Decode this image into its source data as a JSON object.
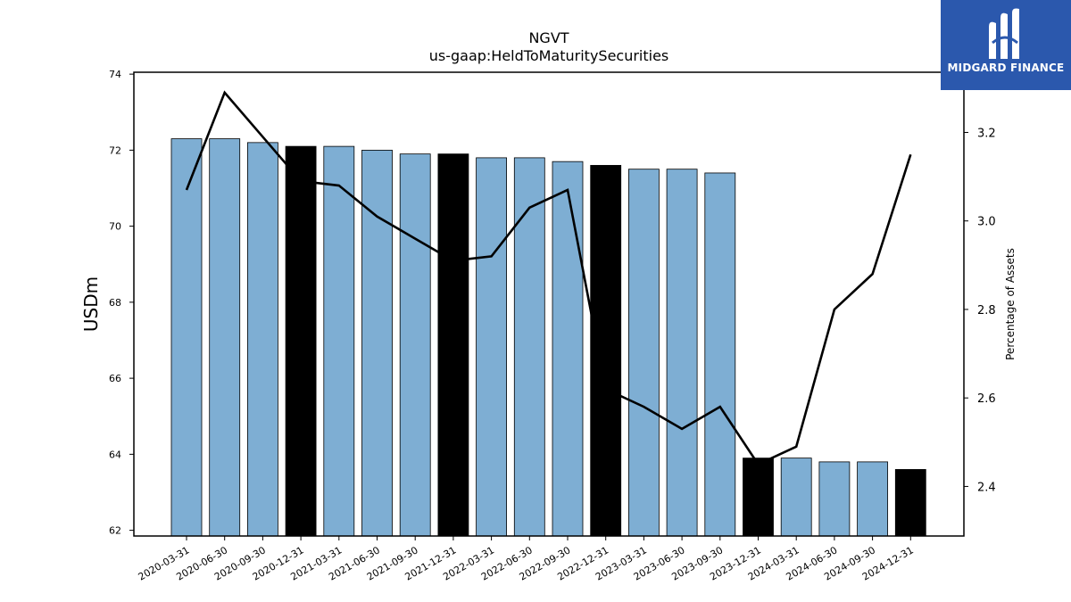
{
  "chart_data": {
    "type": "bar",
    "title": "NGVT",
    "subtitle": "us-gaap:HeldToMaturitySecurities",
    "ylabel": "USDm",
    "y2label": "Percentage of Assets",
    "categories": [
      "2020-03-31",
      "2020-06-30",
      "2020-09-30",
      "2020-12-31",
      "2021-03-31",
      "2021-06-30",
      "2021-09-30",
      "2021-12-31",
      "2022-03-31",
      "2022-06-30",
      "2022-09-30",
      "2022-12-31",
      "2023-03-31",
      "2023-06-30",
      "2023-09-30",
      "2023-12-31",
      "2024-03-31",
      "2024-06-30",
      "2024-09-30",
      "2024-12-31"
    ],
    "values": [
      72.3,
      72.3,
      72.2,
      72.1,
      72.1,
      72.0,
      71.9,
      71.9,
      71.8,
      71.8,
      71.7,
      71.6,
      71.5,
      71.5,
      71.4,
      63.9,
      63.9,
      63.8,
      63.8,
      63.6
    ],
    "bar_colors": [
      "#7eaed3",
      "#7eaed3",
      "#7eaed3",
      "#000000",
      "#7eaed3",
      "#7eaed3",
      "#7eaed3",
      "#000000",
      "#7eaed3",
      "#7eaed3",
      "#7eaed3",
      "#000000",
      "#7eaed3",
      "#7eaed3",
      "#7eaed3",
      "#000000",
      "#7eaed3",
      "#7eaed3",
      "#7eaed3",
      "#000000"
    ],
    "line_values": [
      3.07,
      3.29,
      3.19,
      3.09,
      3.08,
      3.01,
      2.96,
      2.91,
      2.92,
      3.03,
      3.07,
      2.62,
      2.58,
      2.53,
      2.58,
      2.45,
      2.49,
      2.8,
      2.88,
      3.15
    ],
    "ylim": [
      61.85,
      74.05
    ],
    "y2lim": [
      2.288,
      3.336
    ],
    "yticks": [
      62,
      64,
      66,
      68,
      70,
      72,
      74
    ],
    "y2ticks": [
      2.4,
      2.6,
      2.8,
      3.0,
      3.2
    ],
    "grid": false
  },
  "logo": {
    "text": "MIDGARD FINANCE",
    "bg": "#2b58ad"
  }
}
